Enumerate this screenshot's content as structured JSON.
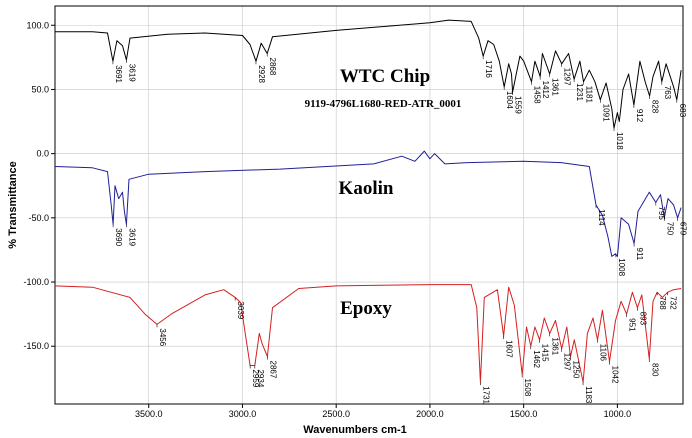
{
  "chart_data": {
    "type": "line",
    "title": "",
    "xlabel": "Wavenumbers cm-1",
    "ylabel": "% Transmittance",
    "xlim": [
      4000,
      650
    ],
    "ylim": [
      -195,
      115
    ],
    "x_ticks": [
      3500,
      3000,
      2500,
      2000,
      1500,
      1000
    ],
    "x_tick_labels": [
      "3500.0",
      "3000.0",
      "2500.0",
      "2000.0",
      "1500.0",
      "1000.0"
    ],
    "y_ticks": [
      100,
      50,
      0,
      -50,
      -100,
      -150
    ],
    "y_tick_labels": [
      "100.0",
      "50.0",
      "0.0",
      "-50.0",
      "-100.0",
      "-150.0"
    ],
    "grid": true,
    "series": [
      {
        "name": "WTC Chip",
        "subtitle": "9119-4796L1680-RED-ATR_0001",
        "color": "#000000",
        "points": [
          [
            4000,
            95
          ],
          [
            3800,
            95
          ],
          [
            3720,
            94
          ],
          [
            3691,
            72
          ],
          [
            3670,
            88
          ],
          [
            3640,
            84
          ],
          [
            3619,
            73
          ],
          [
            3600,
            90
          ],
          [
            3400,
            93
          ],
          [
            3200,
            94
          ],
          [
            3000,
            92
          ],
          [
            2960,
            85
          ],
          [
            2928,
            72
          ],
          [
            2900,
            86
          ],
          [
            2868,
            78
          ],
          [
            2840,
            91
          ],
          [
            2500,
            96
          ],
          [
            2000,
            102
          ],
          [
            1900,
            104
          ],
          [
            1780,
            103
          ],
          [
            1740,
            90
          ],
          [
            1716,
            76
          ],
          [
            1690,
            88
          ],
          [
            1660,
            85
          ],
          [
            1630,
            72
          ],
          [
            1604,
            52
          ],
          [
            1580,
            70
          ],
          [
            1565,
            62
          ],
          [
            1559,
            48
          ],
          [
            1520,
            76
          ],
          [
            1500,
            72
          ],
          [
            1458,
            56
          ],
          [
            1440,
            72
          ],
          [
            1412,
            60
          ],
          [
            1400,
            78
          ],
          [
            1361,
            62
          ],
          [
            1330,
            80
          ],
          [
            1297,
            70
          ],
          [
            1260,
            78
          ],
          [
            1231,
            58
          ],
          [
            1200,
            72
          ],
          [
            1181,
            56
          ],
          [
            1150,
            65
          ],
          [
            1120,
            56
          ],
          [
            1091,
            42
          ],
          [
            1060,
            55
          ],
          [
            1030,
            35
          ],
          [
            1018,
            20
          ],
          [
            1000,
            32
          ],
          [
            990,
            25
          ],
          [
            970,
            50
          ],
          [
            940,
            62
          ],
          [
            912,
            38
          ],
          [
            880,
            72
          ],
          [
            850,
            55
          ],
          [
            828,
            45
          ],
          [
            810,
            60
          ],
          [
            780,
            72
          ],
          [
            763,
            56
          ],
          [
            740,
            70
          ],
          [
            700,
            52
          ],
          [
            683,
            42
          ],
          [
            660,
            65
          ]
        ],
        "annotations": [
          [
            3691,
            "3691"
          ],
          [
            3619,
            "3619"
          ],
          [
            2928,
            "2928"
          ],
          [
            2868,
            "2868"
          ],
          [
            1716,
            "1716"
          ],
          [
            1604,
            "1604"
          ],
          [
            1559,
            "1559"
          ],
          [
            1458,
            "1458"
          ],
          [
            1412,
            "1412"
          ],
          [
            1361,
            "1361"
          ],
          [
            1297,
            "1297"
          ],
          [
            1231,
            "1231"
          ],
          [
            1181,
            "1181"
          ],
          [
            1091,
            "1091"
          ],
          [
            1018,
            "1018"
          ],
          [
            912,
            "912"
          ],
          [
            828,
            "828"
          ],
          [
            763,
            "763"
          ],
          [
            683,
            "683"
          ]
        ]
      },
      {
        "name": "Kaolin",
        "color": "#1f1f9a",
        "points": [
          [
            4000,
            -10
          ],
          [
            3800,
            -11
          ],
          [
            3720,
            -14
          ],
          [
            3700,
            -40
          ],
          [
            3690,
            -55
          ],
          [
            3680,
            -25
          ],
          [
            3660,
            -35
          ],
          [
            3640,
            -30
          ],
          [
            3630,
            -45
          ],
          [
            3619,
            -55
          ],
          [
            3605,
            -20
          ],
          [
            3500,
            -16
          ],
          [
            3200,
            -14
          ],
          [
            2800,
            -12
          ],
          [
            2300,
            -8
          ],
          [
            2150,
            -2
          ],
          [
            2080,
            -6
          ],
          [
            2030,
            2
          ],
          [
            2000,
            -4
          ],
          [
            1975,
            0
          ],
          [
            1920,
            -8
          ],
          [
            1800,
            -7
          ],
          [
            1500,
            -6
          ],
          [
            1300,
            -7
          ],
          [
            1150,
            -10
          ],
          [
            1114,
            -40
          ],
          [
            1080,
            -48
          ],
          [
            1050,
            -65
          ],
          [
            1030,
            -80
          ],
          [
            1010,
            -78
          ],
          [
            1000,
            -80
          ],
          [
            980,
            -50
          ],
          [
            940,
            -55
          ],
          [
            911,
            -70
          ],
          [
            890,
            -45
          ],
          [
            850,
            -35
          ],
          [
            830,
            -30
          ],
          [
            795,
            -38
          ],
          [
            770,
            -32
          ],
          [
            750,
            -50
          ],
          [
            730,
            -35
          ],
          [
            700,
            -40
          ],
          [
            679,
            -50
          ],
          [
            660,
            -42
          ]
        ],
        "annotations": [
          [
            3690,
            "3690"
          ],
          [
            3619,
            "3619"
          ],
          [
            1114,
            "1114"
          ],
          [
            1008,
            "1008"
          ],
          [
            911,
            "911"
          ],
          [
            795,
            "795"
          ],
          [
            750,
            "750"
          ],
          [
            679,
            "679"
          ]
        ]
      },
      {
        "name": "Epoxy",
        "color": "#d42020",
        "points": [
          [
            4000,
            -103
          ],
          [
            3800,
            -104
          ],
          [
            3600,
            -112
          ],
          [
            3520,
            -125
          ],
          [
            3456,
            -133
          ],
          [
            3380,
            -125
          ],
          [
            3200,
            -110
          ],
          [
            3100,
            -106
          ],
          [
            3039,
            -112
          ],
          [
            3010,
            -116
          ],
          [
            2980,
            -145
          ],
          [
            2959,
            -165
          ],
          [
            2934,
            -165
          ],
          [
            2910,
            -140
          ],
          [
            2895,
            -148
          ],
          [
            2867,
            -158
          ],
          [
            2840,
            -120
          ],
          [
            2700,
            -105
          ],
          [
            2500,
            -103
          ],
          [
            2000,
            -102
          ],
          [
            1780,
            -102
          ],
          [
            1750,
            -120
          ],
          [
            1731,
            -178
          ],
          [
            1710,
            -112
          ],
          [
            1640,
            -106
          ],
          [
            1607,
            -142
          ],
          [
            1580,
            -104
          ],
          [
            1550,
            -118
          ],
          [
            1508,
            -172
          ],
          [
            1485,
            -135
          ],
          [
            1462,
            -150
          ],
          [
            1440,
            -135
          ],
          [
            1415,
            -145
          ],
          [
            1390,
            -128
          ],
          [
            1361,
            -140
          ],
          [
            1330,
            -130
          ],
          [
            1297,
            -152
          ],
          [
            1270,
            -135
          ],
          [
            1250,
            -158
          ],
          [
            1230,
            -145
          ],
          [
            1183,
            -178
          ],
          [
            1160,
            -140
          ],
          [
            1130,
            -128
          ],
          [
            1106,
            -145
          ],
          [
            1080,
            -122
          ],
          [
            1042,
            -162
          ],
          [
            1010,
            -130
          ],
          [
            980,
            -115
          ],
          [
            951,
            -125
          ],
          [
            920,
            -108
          ],
          [
            893,
            -120
          ],
          [
            870,
            -110
          ],
          [
            830,
            -160
          ],
          [
            810,
            -115
          ],
          [
            788,
            -108
          ],
          [
            760,
            -112
          ],
          [
            732,
            -108
          ],
          [
            700,
            -106
          ],
          [
            660,
            -105
          ]
        ],
        "annotations": [
          [
            3456,
            "3456"
          ],
          [
            3039,
            "3039"
          ],
          [
            2959,
            "2959"
          ],
          [
            2934,
            "2934"
          ],
          [
            2867,
            "2867"
          ],
          [
            1731,
            "1731"
          ],
          [
            1607,
            "1607"
          ],
          [
            1508,
            "1508"
          ],
          [
            1462,
            "1462"
          ],
          [
            1415,
            "1415"
          ],
          [
            1361,
            "1361"
          ],
          [
            1297,
            "1297"
          ],
          [
            1250,
            "1250"
          ],
          [
            1183,
            "1183"
          ],
          [
            1106,
            "1106"
          ],
          [
            1042,
            "1042"
          ],
          [
            951,
            "951"
          ],
          [
            893,
            "893"
          ],
          [
            830,
            "830"
          ],
          [
            788,
            "788"
          ],
          [
            732,
            "732"
          ]
        ]
      }
    ]
  }
}
